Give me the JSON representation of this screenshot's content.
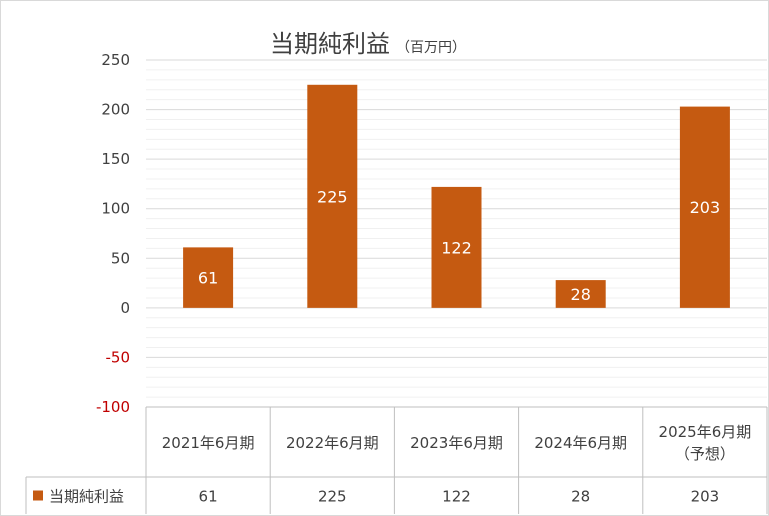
{
  "chart_data": {
    "type": "bar",
    "title": "当期純利益",
    "title_unit": "（百万円）",
    "categories": [
      "2021年6月期",
      "2022年6月期",
      "2023年6月期",
      "2024年6月期",
      "2025年6月期（予想）"
    ],
    "category_lines": [
      [
        "2021年6月期"
      ],
      [
        "2022年6月期"
      ],
      [
        "2023年6月期"
      ],
      [
        "2024年6月期"
      ],
      [
        "2025年6月期",
        "（予想）"
      ]
    ],
    "series": [
      {
        "name": "当期純利益",
        "values": [
          61,
          225,
          122,
          28,
          203
        ]
      }
    ],
    "ylim": [
      -100,
      250
    ],
    "yticks": [
      250,
      200,
      150,
      100,
      50,
      0,
      -50,
      -100
    ],
    "xlabel": "",
    "ylabel": "",
    "data_table": true,
    "grid": true,
    "colors": {
      "bar": "#C55A11",
      "negative_tick": "#C00000",
      "tick": "#404040",
      "grid": "#d9d9d9",
      "minor_grid": "#f0f0f0"
    }
  }
}
